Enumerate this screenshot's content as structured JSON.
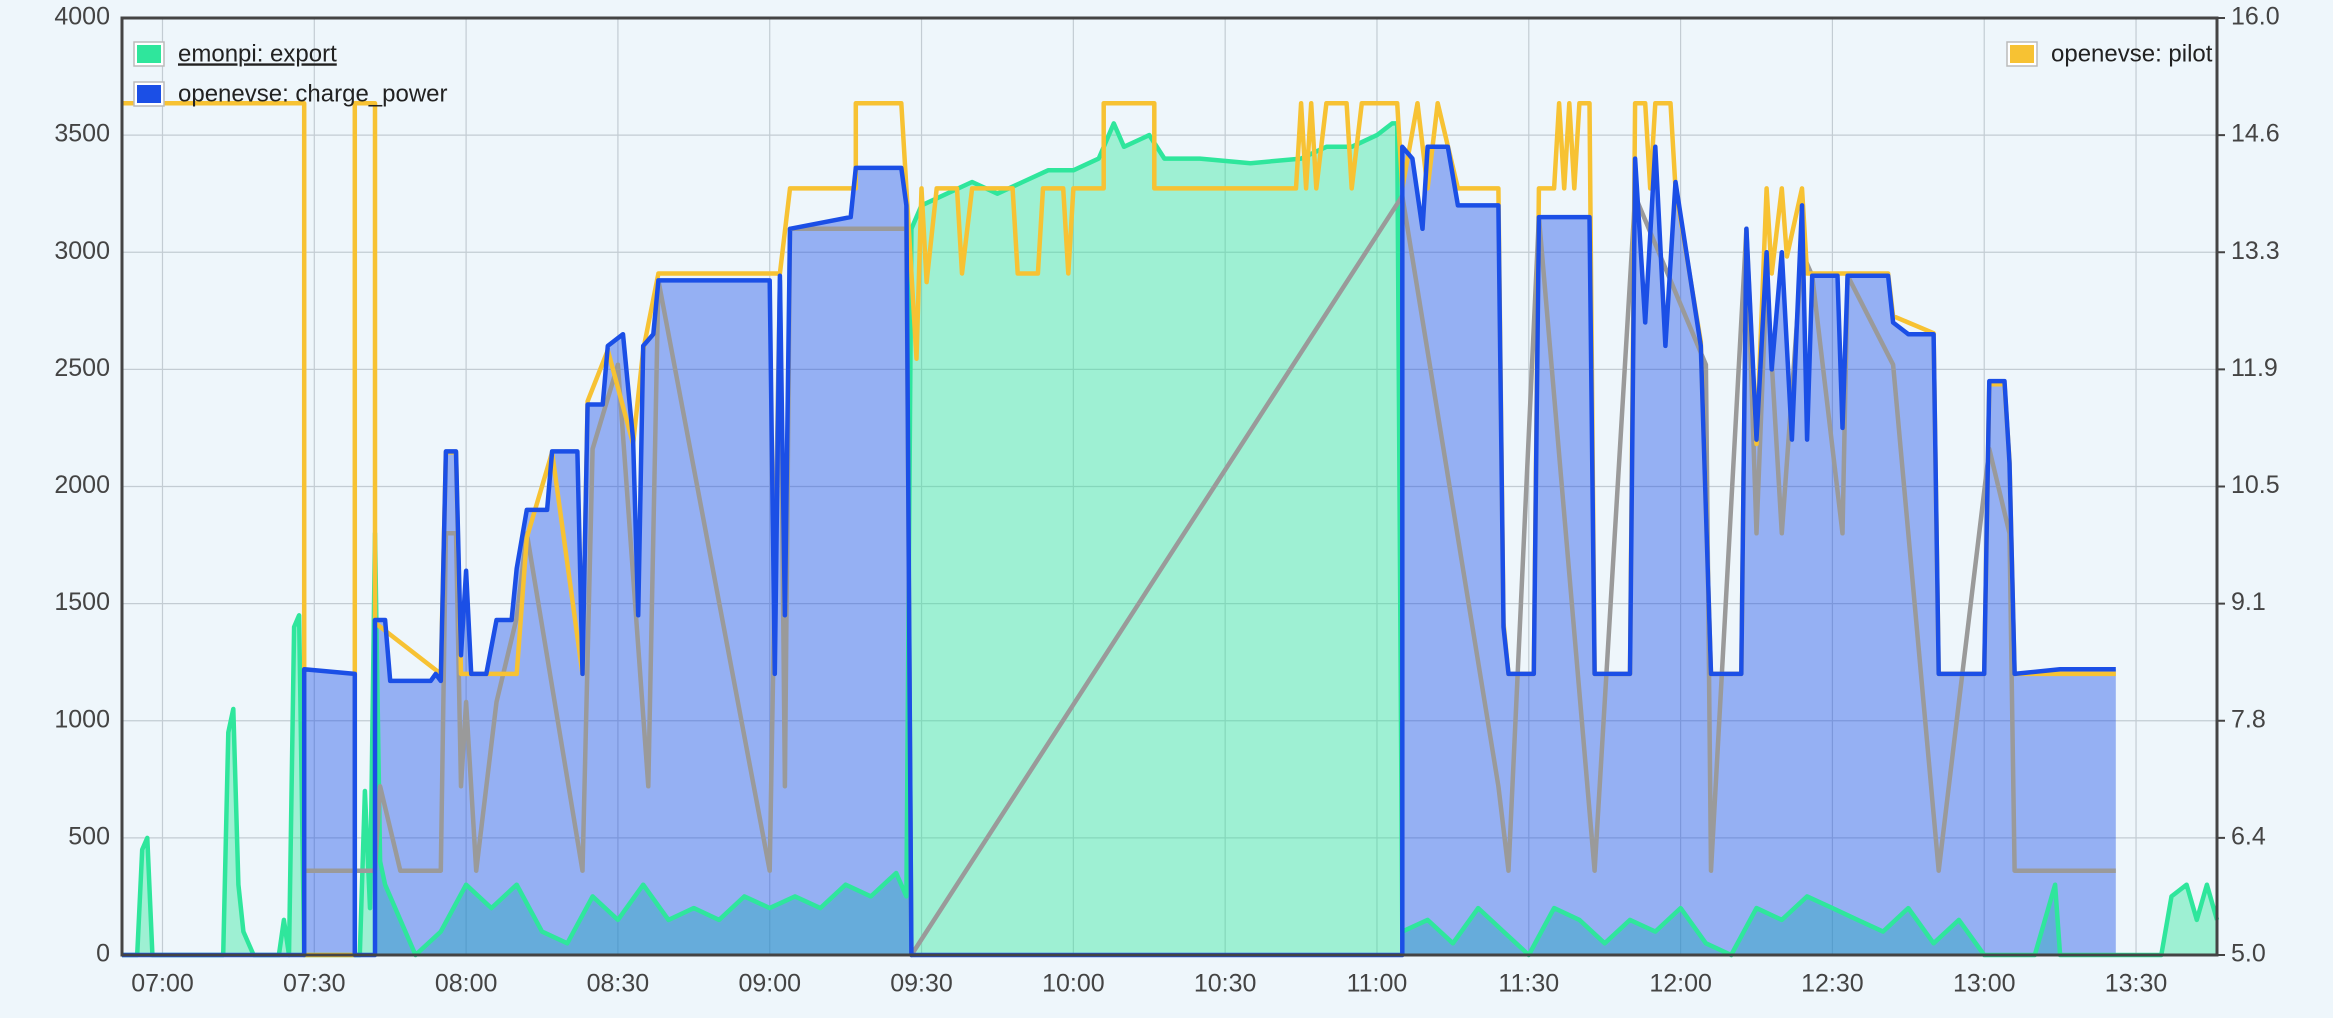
{
  "chart_data": {
    "type": "line",
    "xlim": [
      "06:52",
      "13:46"
    ],
    "xticks": [
      "07:00",
      "07:30",
      "08:00",
      "08:30",
      "09:00",
      "09:30",
      "10:00",
      "10:30",
      "11:00",
      "11:30",
      "12:00",
      "12:30",
      "13:00",
      "13:30"
    ],
    "ylim": [
      0,
      4000
    ],
    "yticks": [
      0,
      500,
      1000,
      1500,
      2000,
      2500,
      3000,
      3500,
      4000
    ],
    "y2lim": [
      5,
      16
    ],
    "y2ticks": [
      {
        "value": 5,
        "label": "5.0"
      },
      {
        "value": 6.375,
        "label": "6.4"
      },
      {
        "value": 7.75,
        "label": "7.8"
      },
      {
        "value": 9.125,
        "label": "9.1"
      },
      {
        "value": 10.5,
        "label": "10.5"
      },
      {
        "value": 11.875,
        "label": "11.9"
      },
      {
        "value": 13.25,
        "label": "13.3"
      },
      {
        "value": 14.625,
        "label": "14.6"
      },
      {
        "value": 16,
        "label": "16.0"
      }
    ],
    "grid": true,
    "legend": "top-left",
    "series": [
      {
        "name": "emonpi: export",
        "color": "#2fe69c",
        "fill": true,
        "x": [
          "06:52",
          "06:55",
          "06:56",
          "06:57",
          "06:58",
          "07:12",
          "07:13",
          "07:14",
          "07:15",
          "07:16",
          "07:18",
          "07:23",
          "07:24",
          "07:25",
          "07:26",
          "07:27",
          "07:28",
          "07:39",
          "07:40",
          "07:41",
          "07:42",
          "07:43",
          "07:44",
          "07:50",
          "07:55",
          "08:00",
          "08:05",
          "08:10",
          "08:15",
          "08:20",
          "08:25",
          "08:30",
          "08:35",
          "08:40",
          "08:45",
          "08:50",
          "08:55",
          "09:00",
          "09:05",
          "09:10",
          "09:15",
          "09:20",
          "09:25",
          "09:27",
          "09:28",
          "09:30",
          "09:35",
          "09:40",
          "09:45",
          "09:50",
          "09:55",
          "10:00",
          "10:05",
          "10:08",
          "10:10",
          "10:15",
          "10:18",
          "10:25",
          "10:35",
          "10:45",
          "10:50",
          "10:55",
          "11:00",
          "11:03",
          "11:04",
          "11:05",
          "11:10",
          "11:15",
          "11:20",
          "11:25",
          "11:30",
          "11:35",
          "11:40",
          "11:45",
          "11:50",
          "11:55",
          "12:00",
          "12:05",
          "12:10",
          "12:15",
          "12:20",
          "12:25",
          "12:30",
          "12:35",
          "12:40",
          "12:45",
          "12:50",
          "12:55",
          "13:00",
          "13:10",
          "13:14",
          "13:15",
          "13:35",
          "13:37",
          "13:40",
          "13:42",
          "13:44",
          "13:46"
        ],
        "values": [
          0,
          0,
          450,
          500,
          0,
          0,
          950,
          1050,
          300,
          100,
          0,
          0,
          150,
          0,
          1400,
          1450,
          0,
          0,
          700,
          200,
          1800,
          400,
          300,
          0,
          100,
          300,
          200,
          300,
          100,
          50,
          250,
          150,
          300,
          150,
          200,
          150,
          250,
          200,
          250,
          200,
          300,
          250,
          350,
          250,
          3100,
          3200,
          3250,
          3300,
          3250,
          3300,
          3350,
          3350,
          3400,
          3550,
          3450,
          3500,
          3400,
          3400,
          3380,
          3400,
          3450,
          3450,
          3500,
          3550,
          3550,
          100,
          150,
          50,
          200,
          100,
          0,
          200,
          150,
          50,
          150,
          100,
          200,
          50,
          0,
          200,
          150,
          250,
          200,
          150,
          100,
          200,
          50,
          150,
          0,
          0,
          300,
          0,
          0,
          250,
          300,
          150,
          300,
          150
        ]
      },
      {
        "name": "openevse: charge_power",
        "color": "#1b4fe6",
        "fill": true,
        "x": [
          "06:52",
          "07:28",
          "07:28",
          "07:38",
          "07:38",
          "07:42",
          "07:42",
          "07:44",
          "07:45",
          "07:53",
          "07:54",
          "07:55",
          "07:56",
          "07:58",
          "07:59",
          "08:00",
          "08:01",
          "08:04",
          "08:06",
          "08:09",
          "08:10",
          "08:12",
          "08:16",
          "08:17",
          "08:22",
          "08:23",
          "08:24",
          "08:27",
          "08:28",
          "08:31",
          "08:33",
          "08:34",
          "08:35",
          "08:37",
          "08:38",
          "09:00",
          "09:01",
          "09:02",
          "09:03",
          "09:04",
          "09:16",
          "09:17",
          "09:26",
          "09:27",
          "09:28",
          "11:05",
          "11:05",
          "11:07",
          "11:09",
          "11:10",
          "11:14",
          "11:16",
          "11:24",
          "11:25",
          "11:26",
          "11:31",
          "11:32",
          "11:42",
          "11:43",
          "11:50",
          "11:51",
          "11:53",
          "11:55",
          "11:57",
          "11:59",
          "12:04",
          "12:06",
          "12:12",
          "12:13",
          "12:15",
          "12:17",
          "12:18",
          "12:20",
          "12:22",
          "12:24",
          "12:25",
          "12:26",
          "12:31",
          "12:32",
          "12:33",
          "12:41",
          "12:42",
          "12:45",
          "12:50",
          "12:51",
          "13:00",
          "13:01",
          "13:04",
          "13:05",
          "13:06",
          "13:15",
          "13:26"
        ],
        "values": [
          0,
          0,
          1220,
          1200,
          0,
          0,
          1430,
          1430,
          1170,
          1170,
          1200,
          1170,
          2150,
          2150,
          1280,
          1640,
          1200,
          1200,
          1430,
          1430,
          1650,
          1900,
          1900,
          2150,
          2150,
          1200,
          2350,
          2350,
          2600,
          2650,
          2200,
          1450,
          2600,
          2650,
          2880,
          2880,
          1200,
          2900,
          1450,
          3100,
          3150,
          3360,
          3360,
          3200,
          0,
          0,
          3450,
          3400,
          3100,
          3450,
          3450,
          3200,
          3200,
          1400,
          1200,
          1200,
          3150,
          3150,
          1200,
          1200,
          3400,
          2700,
          3450,
          2600,
          3300,
          2600,
          1200,
          1200,
          3100,
          2200,
          3000,
          2500,
          3000,
          2200,
          3200,
          2200,
          2900,
          2900,
          2250,
          2900,
          2900,
          2700,
          2650,
          2650,
          1200,
          1200,
          2450,
          2450,
          2100,
          1200,
          1220,
          1220
        ]
      },
      {
        "color": "#9a9a9a",
        "x": [
          "07:28",
          "07:42",
          "07:43",
          "07:47",
          "07:55",
          "07:56",
          "07:58",
          "07:59",
          "08:00",
          "08:02",
          "08:06",
          "08:10",
          "08:12",
          "08:23",
          "08:25",
          "08:30",
          "08:36",
          "08:38",
          "09:00",
          "09:02",
          "09:03",
          "09:04",
          "09:27",
          "09:28",
          "11:05",
          "11:24",
          "11:26",
          "11:32",
          "11:43",
          "11:51",
          "12:05",
          "12:06",
          "12:13",
          "12:15",
          "12:17",
          "12:20",
          "12:24",
          "12:26",
          "12:32",
          "12:33",
          "12:42",
          "12:51",
          "13:01",
          "13:05",
          "13:06",
          "13:26"
        ],
        "values": [
          360,
          360,
          720,
          360,
          360,
          1800,
          1800,
          720,
          1080,
          360,
          1080,
          1440,
          1800,
          360,
          2160,
          2520,
          720,
          2880,
          360,
          2880,
          720,
          3100,
          3100,
          0,
          3240,
          720,
          360,
          3150,
          360,
          3240,
          2520,
          360,
          3100,
          1800,
          2900,
          1800,
          3000,
          2900,
          1800,
          2900,
          2520,
          360,
          2160,
          1800,
          360,
          360
        ]
      },
      {
        "name": "openevse: pilot",
        "color": "#f7c233",
        "axis": "y2",
        "x": [
          "06:52",
          "07:28",
          "07:28",
          "07:38",
          "07:38",
          "07:42",
          "07:42",
          "07:55",
          "07:56",
          "07:58",
          "07:59",
          "08:10",
          "08:12",
          "08:17",
          "08:23",
          "08:24",
          "08:28",
          "08:33",
          "08:35",
          "08:38",
          "09:02",
          "09:04",
          "09:17",
          "09:17",
          "09:26",
          "09:27",
          "09:29",
          "09:30",
          "09:31",
          "09:33",
          "09:37",
          "09:38",
          "09:40",
          "09:48",
          "09:49",
          "09:53",
          "09:54",
          "09:58",
          "09:59",
          "10:00",
          "10:06",
          "10:06",
          "10:16",
          "10:16",
          "10:44",
          "10:45",
          "10:46",
          "10:47",
          "10:48",
          "10:50",
          "10:54",
          "10:55",
          "10:57",
          "11:04",
          "11:05",
          "11:08",
          "11:10",
          "11:12",
          "11:16",
          "11:24",
          "11:25",
          "11:26",
          "11:31",
          "11:32",
          "11:35",
          "11:36",
          "11:37",
          "11:38",
          "11:39",
          "11:40",
          "11:42",
          "11:43",
          "11:50",
          "11:51",
          "11:53",
          "11:54",
          "11:55",
          "11:58",
          "11:59",
          "12:04",
          "12:06",
          "12:12",
          "12:13",
          "12:15",
          "12:17",
          "12:18",
          "12:20",
          "12:21",
          "12:24",
          "12:25",
          "12:31",
          "12:41",
          "12:42",
          "12:50",
          "12:51",
          "13:00",
          "13:01",
          "13:04",
          "13:05",
          "13:06",
          "13:26"
        ],
        "values": [
          15,
          15,
          5,
          5,
          15,
          15,
          8.9,
          8.3,
          10.9,
          10.9,
          8.3,
          8.3,
          9.9,
          10.9,
          8.3,
          11.5,
          12.1,
          11,
          12.1,
          13,
          13,
          14,
          14,
          15,
          15,
          14,
          12,
          14,
          12.9,
          14,
          14,
          13,
          14,
          14,
          13,
          13,
          14,
          14,
          13,
          14,
          14,
          15,
          15,
          14,
          14,
          15,
          14,
          15,
          14,
          15,
          15,
          14,
          15,
          15,
          14,
          15,
          14,
          15,
          14,
          14,
          8.9,
          8.3,
          8.3,
          14,
          14,
          15,
          14,
          15,
          14,
          15,
          15,
          8.3,
          8.3,
          15,
          15,
          14,
          15,
          15,
          14,
          12.2,
          8.3,
          8.3,
          13.5,
          11,
          14,
          13,
          14,
          13.2,
          14,
          13,
          13,
          13,
          12.5,
          12.3,
          8.3,
          8.3,
          11.7,
          11.7,
          10.8,
          8.3,
          8.3
        ]
      }
    ]
  }
}
